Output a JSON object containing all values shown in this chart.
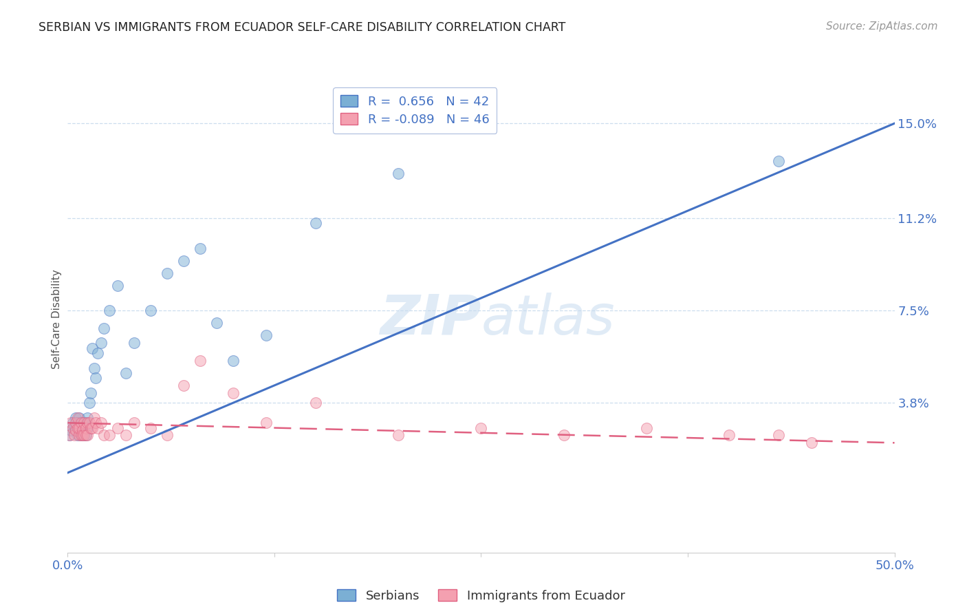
{
  "title": "SERBIAN VS IMMIGRANTS FROM ECUADOR SELF-CARE DISABILITY CORRELATION CHART",
  "source": "Source: ZipAtlas.com",
  "ylabel": "Self-Care Disability",
  "ytick_labels": [
    "3.8%",
    "7.5%",
    "11.2%",
    "15.0%"
  ],
  "ytick_values": [
    0.038,
    0.075,
    0.112,
    0.15
  ],
  "xmin": 0.0,
  "xmax": 0.5,
  "ymin": -0.022,
  "ymax": 0.165,
  "legend_serbian_R": "0.656",
  "legend_serbian_N": "42",
  "legend_ecuador_R": "-0.089",
  "legend_ecuador_N": "46",
  "serbian_color": "#7BAFD4",
  "ecuador_color": "#F4A0B0",
  "trendline_serbian_color": "#4472C4",
  "trendline_ecuador_color": "#E06080",
  "serbian_x": [
    0.001,
    0.002,
    0.003,
    0.004,
    0.005,
    0.005,
    0.006,
    0.006,
    0.007,
    0.007,
    0.008,
    0.008,
    0.009,
    0.009,
    0.01,
    0.01,
    0.011,
    0.011,
    0.012,
    0.012,
    0.013,
    0.014,
    0.015,
    0.016,
    0.017,
    0.018,
    0.02,
    0.022,
    0.025,
    0.03,
    0.035,
    0.04,
    0.05,
    0.06,
    0.07,
    0.08,
    0.09,
    0.1,
    0.12,
    0.15,
    0.2,
    0.43
  ],
  "serbian_y": [
    0.025,
    0.027,
    0.03,
    0.028,
    0.032,
    0.028,
    0.025,
    0.03,
    0.027,
    0.032,
    0.028,
    0.025,
    0.03,
    0.027,
    0.025,
    0.028,
    0.03,
    0.025,
    0.032,
    0.028,
    0.038,
    0.042,
    0.06,
    0.052,
    0.048,
    0.058,
    0.062,
    0.068,
    0.075,
    0.085,
    0.05,
    0.062,
    0.075,
    0.09,
    0.095,
    0.1,
    0.07,
    0.055,
    0.065,
    0.11,
    0.13,
    0.135
  ],
  "ecuador_x": [
    0.001,
    0.002,
    0.003,
    0.004,
    0.005,
    0.005,
    0.006,
    0.006,
    0.007,
    0.007,
    0.008,
    0.008,
    0.009,
    0.009,
    0.01,
    0.01,
    0.011,
    0.011,
    0.012,
    0.012,
    0.013,
    0.014,
    0.015,
    0.016,
    0.017,
    0.018,
    0.02,
    0.022,
    0.025,
    0.03,
    0.035,
    0.04,
    0.05,
    0.06,
    0.07,
    0.08,
    0.1,
    0.12,
    0.15,
    0.2,
    0.25,
    0.3,
    0.35,
    0.4,
    0.43,
    0.45
  ],
  "ecuador_y": [
    0.025,
    0.03,
    0.028,
    0.025,
    0.027,
    0.03,
    0.028,
    0.032,
    0.025,
    0.028,
    0.025,
    0.03,
    0.027,
    0.025,
    0.03,
    0.025,
    0.028,
    0.025,
    0.03,
    0.025,
    0.03,
    0.028,
    0.028,
    0.032,
    0.03,
    0.028,
    0.03,
    0.025,
    0.025,
    0.028,
    0.025,
    0.03,
    0.028,
    0.025,
    0.045,
    0.055,
    0.042,
    0.03,
    0.038,
    0.025,
    0.028,
    0.025,
    0.028,
    0.025,
    0.025,
    0.022
  ],
  "trendline_serbian_x0": 0.0,
  "trendline_serbian_y0": 0.01,
  "trendline_serbian_x1": 0.5,
  "trendline_serbian_y1": 0.15,
  "trendline_ecuador_x0": 0.0,
  "trendline_ecuador_y0": 0.03,
  "trendline_ecuador_x1": 0.5,
  "trendline_ecuador_y1": 0.022
}
